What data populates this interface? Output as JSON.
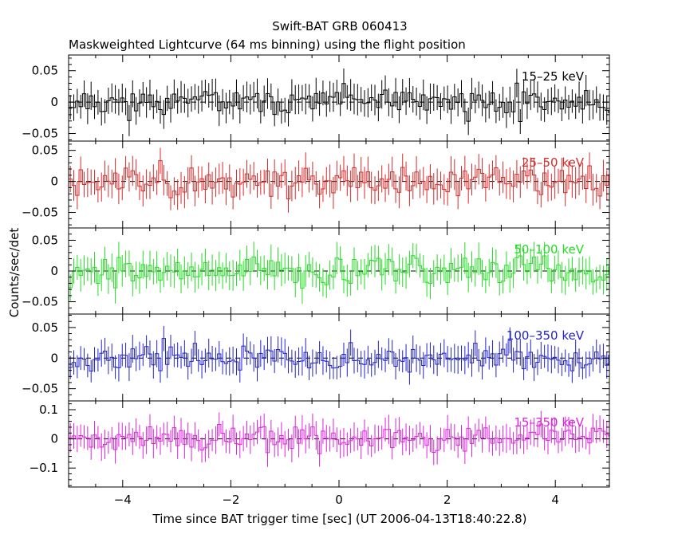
{
  "chart_data": {
    "type": "line",
    "title": "Swift-BAT GRB 060413",
    "subtitle": "Maskweighted Lightcurve (64 ms binning) using the flight position",
    "xlabel": "Time since BAT trigger time [sec] (UT 2006-04-13T18:40:22.8)",
    "ylabel": "Counts/sec/det",
    "xlim": [
      -5,
      5
    ],
    "x_ticks": [
      -4,
      -2,
      0,
      2,
      4
    ],
    "x_tick_labels": [
      "−4",
      "−2",
      "0",
      "2",
      "4"
    ],
    "bin_width_s": 0.064,
    "panels": [
      {
        "name": "15-25 keV",
        "label": "15–25 keV",
        "color": "#000000",
        "ylim": [
          -0.062,
          0.075
        ],
        "y_ticks": [
          -0.05,
          0,
          0.05
        ],
        "y_tick_labels": [
          "−0.05",
          "0",
          "0.05"
        ],
        "noise": 0.016,
        "err": 0.022,
        "seed": 11
      },
      {
        "name": "25-50 keV",
        "label": "25–50 keV",
        "color": "#d42a2a",
        "ylim": [
          -0.075,
          0.065
        ],
        "y_ticks": [
          -0.05,
          0,
          0.05
        ],
        "y_tick_labels": [
          "−0.05",
          "0",
          "0.05"
        ],
        "noise": 0.017,
        "err": 0.023,
        "seed": 23
      },
      {
        "name": "50-100 keV",
        "label": "50–100 keV",
        "color": "#22dd22",
        "ylim": [
          -0.07,
          0.07
        ],
        "y_ticks": [
          -0.05,
          0,
          0.05
        ],
        "y_tick_labels": [
          "−0.05",
          "0",
          "0.05"
        ],
        "noise": 0.017,
        "err": 0.023,
        "seed": 37
      },
      {
        "name": "100-350 keV",
        "label": "100–350 keV",
        "color": "#2222cc",
        "ylim": [
          -0.07,
          0.072
        ],
        "y_ticks": [
          -0.05,
          0,
          0.05
        ],
        "y_tick_labels": [
          "−0.05",
          "0",
          "0.05"
        ],
        "noise": 0.016,
        "err": 0.021,
        "seed": 53
      },
      {
        "name": "15-350 keV",
        "label": "15–350 keV",
        "color": "#dd22dd",
        "ylim": [
          -0.165,
          0.13
        ],
        "y_ticks": [
          -0.1,
          0,
          0.1
        ],
        "y_tick_labels": [
          "−0.1",
          "0",
          "0.1"
        ],
        "noise": 0.032,
        "err": 0.044,
        "seed": 71
      }
    ]
  }
}
